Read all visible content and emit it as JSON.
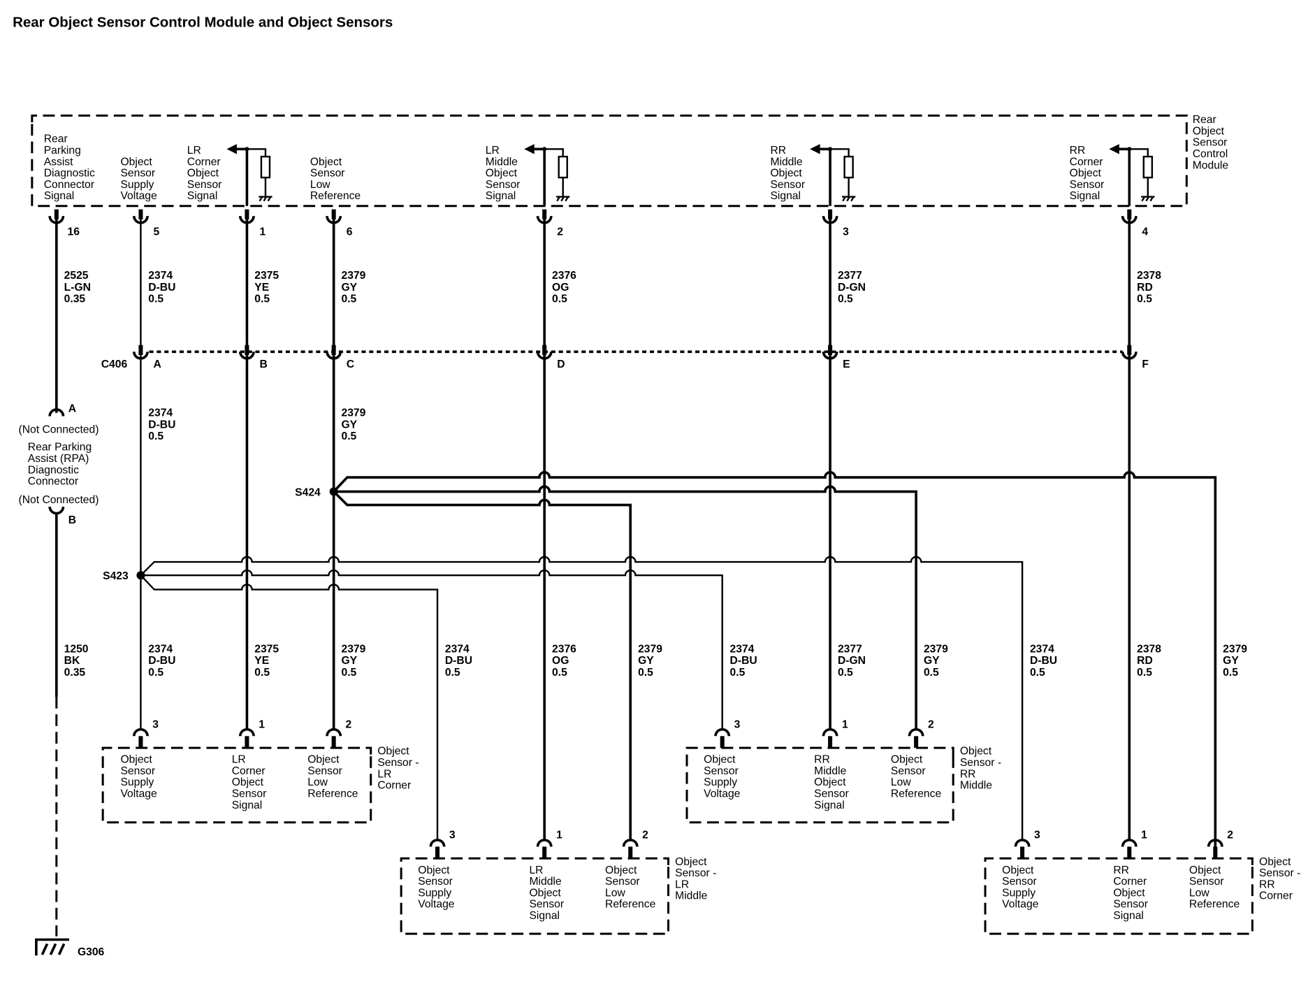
{
  "title": "Rear Object Sensor Control Module and Object Sensors",
  "module": {
    "label": [
      "Rear",
      "Object",
      "Sensor",
      "Control",
      "Module"
    ],
    "pins": [
      {
        "pin": "16",
        "label": [
          "Rear",
          "Parking",
          "Assist",
          "Diagnostic",
          "Connector",
          "Signal"
        ],
        "circuit": "2525",
        "color": "L-GN",
        "size": "0.35",
        "pullup": false
      },
      {
        "pin": "5",
        "label": [
          "Object",
          "Sensor",
          "Supply",
          "Voltage"
        ],
        "circuit": "2374",
        "color": "D-BU",
        "size": "0.5",
        "pullup": false
      },
      {
        "pin": "1",
        "label": [
          "LR",
          "Corner",
          "Object",
          "Sensor",
          "Signal"
        ],
        "circuit": "2375",
        "color": "YE",
        "size": "0.5",
        "pullup": true
      },
      {
        "pin": "6",
        "label": [
          "Object",
          "Sensor",
          "Low",
          "Reference"
        ],
        "circuit": "2379",
        "color": "GY",
        "size": "0.5",
        "pullup": false
      },
      {
        "pin": "2",
        "label": [
          "LR",
          "Middle",
          "Object",
          "Sensor",
          "Signal"
        ],
        "circuit": "2376",
        "color": "OG",
        "size": "0.5",
        "pullup": true
      },
      {
        "pin": "3",
        "label": [
          "RR",
          "Middle",
          "Object",
          "Sensor",
          "Signal"
        ],
        "circuit": "2377",
        "color": "D-GN",
        "size": "0.5",
        "pullup": true
      },
      {
        "pin": "4",
        "label": [
          "RR",
          "Corner",
          "Object",
          "Sensor",
          "Signal"
        ],
        "circuit": "2378",
        "color": "RD",
        "size": "0.5",
        "pullup": true
      }
    ]
  },
  "connector_c406": {
    "name": "C406",
    "terminals": [
      "A",
      "B",
      "C",
      "D",
      "E",
      "F"
    ]
  },
  "mid_wires": [
    {
      "circuit": "2374",
      "color": "D-BU",
      "size": "0.5"
    },
    {
      "circuit": "2379",
      "color": "GY",
      "size": "0.5"
    }
  ],
  "splices": {
    "s423": "S423",
    "s424": "S424"
  },
  "diag_connector": {
    "pin_a": "A",
    "pin_b": "B",
    "not_connected_top": "(Not Connected)",
    "name": [
      "Rear Parking",
      "Assist (RPA)",
      "Diagnostic",
      "Connector"
    ],
    "not_connected_bottom": "(Not Connected)"
  },
  "ground_wire": {
    "circuit": "1250",
    "color": "BK",
    "size": "0.35",
    "ground": "G306"
  },
  "lower_wires": [
    {
      "circuit": "2374",
      "color": "D-BU",
      "size": "0.5"
    },
    {
      "circuit": "2375",
      "color": "YE",
      "size": "0.5"
    },
    {
      "circuit": "2379",
      "color": "GY",
      "size": "0.5"
    },
    {
      "circuit": "2374",
      "color": "D-BU",
      "size": "0.5"
    },
    {
      "circuit": "2376",
      "color": "OG",
      "size": "0.5"
    },
    {
      "circuit": "2379",
      "color": "GY",
      "size": "0.5"
    },
    {
      "circuit": "2374",
      "color": "D-BU",
      "size": "0.5"
    },
    {
      "circuit": "2377",
      "color": "D-GN",
      "size": "0.5"
    },
    {
      "circuit": "2379",
      "color": "GY",
      "size": "0.5"
    },
    {
      "circuit": "2374",
      "color": "D-BU",
      "size": "0.5"
    },
    {
      "circuit": "2378",
      "color": "RD",
      "size": "0.5"
    },
    {
      "circuit": "2379",
      "color": "GY",
      "size": "0.5"
    }
  ],
  "sensors": [
    {
      "label": [
        "Object",
        "Sensor -",
        "LR",
        "Corner"
      ],
      "pins": [
        {
          "pin": "3",
          "label": [
            "Object",
            "Sensor",
            "Supply",
            "Voltage"
          ]
        },
        {
          "pin": "1",
          "label": [
            "LR",
            "Corner",
            "Object",
            "Sensor",
            "Signal"
          ]
        },
        {
          "pin": "2",
          "label": [
            "Object",
            "Sensor",
            "Low",
            "Reference"
          ]
        }
      ]
    },
    {
      "label": [
        "Object",
        "Sensor -",
        "LR",
        "Middle"
      ],
      "pins": [
        {
          "pin": "3",
          "label": [
            "Object",
            "Sensor",
            "Supply",
            "Voltage"
          ]
        },
        {
          "pin": "1",
          "label": [
            "LR",
            "Middle",
            "Object",
            "Sensor",
            "Signal"
          ]
        },
        {
          "pin": "2",
          "label": [
            "Object",
            "Sensor",
            "Low",
            "Reference"
          ]
        }
      ]
    },
    {
      "label": [
        "Object",
        "Sensor -",
        "RR",
        "Middle"
      ],
      "pins": [
        {
          "pin": "3",
          "label": [
            "Object",
            "Sensor",
            "Supply",
            "Voltage"
          ]
        },
        {
          "pin": "1",
          "label": [
            "RR",
            "Middle",
            "Object",
            "Sensor",
            "Signal"
          ]
        },
        {
          "pin": "2",
          "label": [
            "Object",
            "Sensor",
            "Low",
            "Reference"
          ]
        }
      ]
    },
    {
      "label": [
        "Object",
        "Sensor -",
        "RR",
        "Corner"
      ],
      "pins": [
        {
          "pin": "3",
          "label": [
            "Object",
            "Sensor",
            "Supply",
            "Voltage"
          ]
        },
        {
          "pin": "1",
          "label": [
            "RR",
            "Corner",
            "Object",
            "Sensor",
            "Signal"
          ]
        },
        {
          "pin": "2",
          "label": [
            "Object",
            "Sensor",
            "Low",
            "Reference"
          ]
        }
      ]
    }
  ]
}
